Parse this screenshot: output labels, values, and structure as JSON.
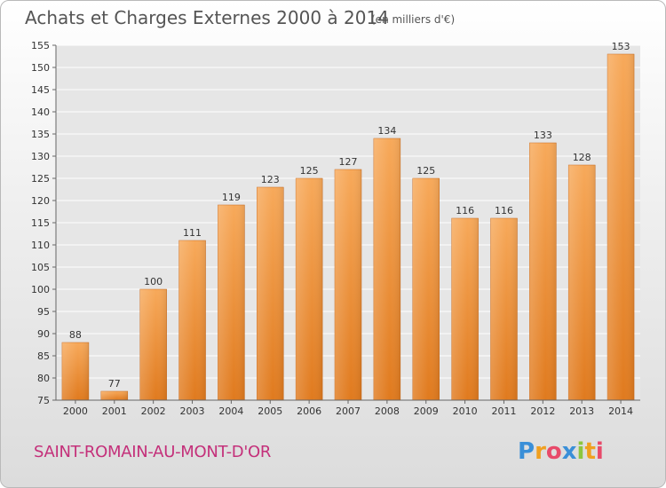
{
  "chart_data": {
    "type": "bar",
    "title": "Achats et Charges Externes 2000 à 2014",
    "subtitle": "(en milliers d'€)",
    "categories": [
      "2000",
      "2001",
      "2002",
      "2003",
      "2004",
      "2005",
      "2006",
      "2007",
      "2008",
      "2009",
      "2010",
      "2011",
      "2012",
      "2013",
      "2014"
    ],
    "values": [
      88,
      77,
      100,
      111,
      119,
      123,
      125,
      127,
      134,
      125,
      116,
      116,
      133,
      128,
      153
    ],
    "ylim": [
      75,
      155
    ],
    "yticks": [
      75,
      80,
      85,
      90,
      95,
      100,
      105,
      110,
      115,
      120,
      125,
      130,
      135,
      140,
      145,
      150,
      155
    ],
    "grid": true,
    "bar_color": "#f0913a"
  },
  "footer": {
    "town": "SAINT-ROMAIN-AU-MONT-D'OR"
  },
  "logo": {
    "letters": [
      "P",
      "r",
      "o",
      "x",
      "i",
      "t",
      "i"
    ],
    "colors": [
      "#3a8fd8",
      "#f0a020",
      "#e84a6a",
      "#3a8fd8",
      "#8cc63f",
      "#f0a020",
      "#e84a6a"
    ]
  }
}
